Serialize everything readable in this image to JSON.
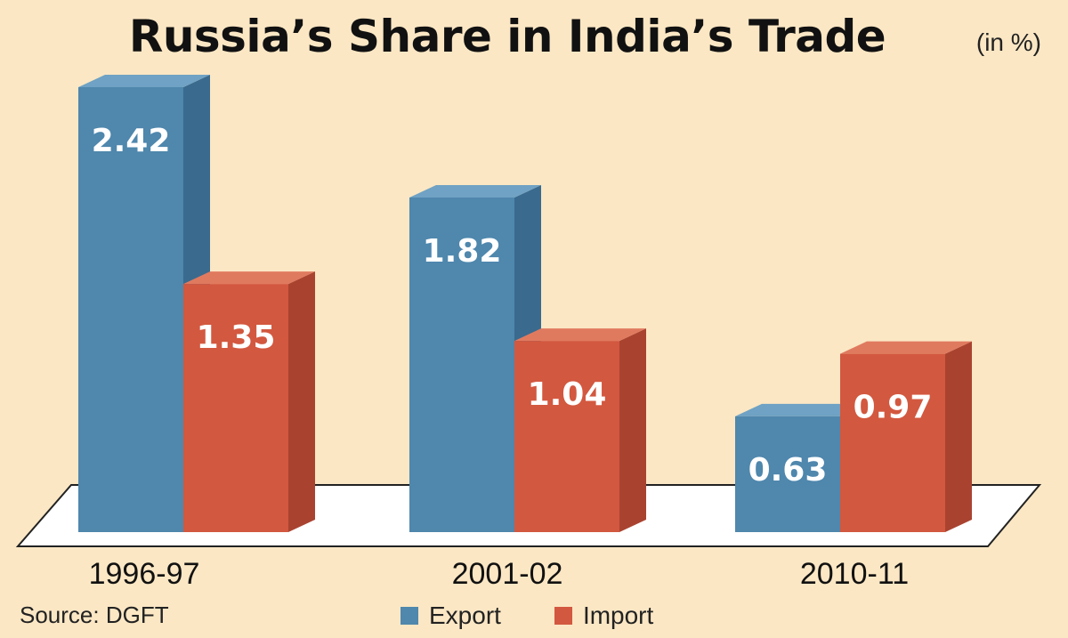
{
  "chart_data": {
    "type": "bar",
    "title": "Russia’s Share in India’s Trade",
    "unit": "(in %)",
    "categories": [
      "1996-97",
      "2001-02",
      "2010-11"
    ],
    "series": [
      {
        "name": "Export",
        "values": [
          2.42,
          1.82,
          0.63
        ],
        "color": "#4f87ad",
        "side_color": "#3a6a8e",
        "top_color": "#6fa2c4"
      },
      {
        "name": "Import",
        "values": [
          1.35,
          1.04,
          0.97
        ],
        "color": "#d2583f",
        "side_color": "#a94330",
        "top_color": "#e07a5f"
      }
    ],
    "value_labels": [
      [
        "2.42",
        "1.82",
        "0.63"
      ],
      [
        "1.35",
        "1.04",
        "0.97"
      ]
    ],
    "ylim": [
      0,
      2.42
    ],
    "grid": false,
    "legend": "bottom-center",
    "source": "Source: DGFT"
  },
  "legend": {
    "export_label": "Export",
    "import_label": "Import"
  }
}
